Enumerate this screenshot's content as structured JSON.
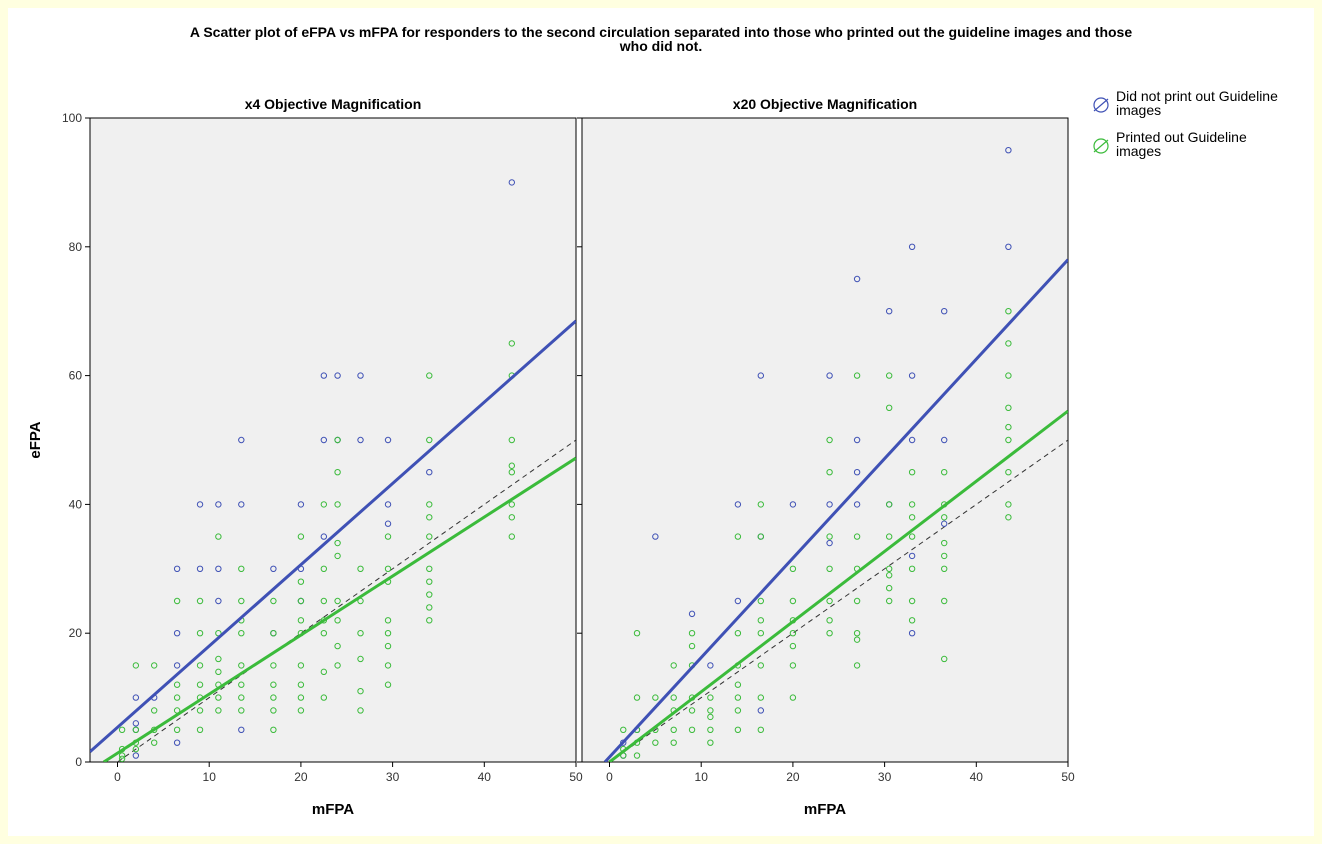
{
  "title_lines": [
    "A Scatter plot of eFPA vs mFPA for responders to the second circulation separated into those who printed out the guideline images and those",
    "who did not."
  ],
  "colors": {
    "did_not_print": "#3f51b5",
    "printed": "#3bbb3b",
    "panel_bg": "#f0f0f0",
    "reference_line": "#333333"
  },
  "chart_data": [
    {
      "type": "scatter",
      "title": "x4 Objective Magnification",
      "xlabel": "mFPA",
      "ylabel": "eFPA",
      "xlim": [
        -3,
        50
      ],
      "ylim": [
        0,
        100
      ],
      "xticks": [
        0,
        10,
        20,
        30,
        40,
        50
      ],
      "xtick_labels": [
        "0",
        "10",
        "20",
        "30",
        "40",
        "50"
      ],
      "yticks": [
        0,
        20,
        40,
        60,
        80,
        100
      ],
      "ytick_labels": [
        "0",
        "20",
        "40",
        "60",
        "80",
        "100"
      ],
      "grid": false,
      "legend": "right",
      "series": [
        {
          "name": "Did not print out Guideline images",
          "points": [
            [
              2,
              10
            ],
            [
              2,
              6
            ],
            [
              2,
              5
            ],
            [
              2,
              1
            ],
            [
              4,
              10
            ],
            [
              6.5,
              30
            ],
            [
              6.5,
              20
            ],
            [
              6.5,
              15
            ],
            [
              6.5,
              3
            ],
            [
              9,
              40
            ],
            [
              9,
              30
            ],
            [
              11,
              40
            ],
            [
              11,
              30
            ],
            [
              11,
              25
            ],
            [
              13.5,
              50
            ],
            [
              13.5,
              40
            ],
            [
              13.5,
              5
            ],
            [
              17,
              30
            ],
            [
              17,
              20
            ],
            [
              20,
              40
            ],
            [
              20,
              30
            ],
            [
              20,
              25
            ],
            [
              22.5,
              60
            ],
            [
              22.5,
              50
            ],
            [
              22.5,
              35
            ],
            [
              24,
              60
            ],
            [
              24,
              50
            ],
            [
              26.5,
              60
            ],
            [
              26.5,
              50
            ],
            [
              29.5,
              50
            ],
            [
              29.5,
              40
            ],
            [
              29.5,
              37
            ],
            [
              34,
              45
            ],
            [
              43,
              90
            ]
          ],
          "fit": [
            [
              -3,
              1.6
            ],
            [
              50,
              68.5
            ]
          ]
        },
        {
          "name": "Printed out Guideline images",
          "points": [
            [
              0.5,
              2
            ],
            [
              0.5,
              1
            ],
            [
              0.5,
              0.5
            ],
            [
              0.5,
              5
            ],
            [
              2,
              15
            ],
            [
              2,
              5
            ],
            [
              2,
              3
            ],
            [
              2,
              2
            ],
            [
              4,
              15
            ],
            [
              4,
              8
            ],
            [
              4,
              5
            ],
            [
              4,
              3
            ],
            [
              6.5,
              25
            ],
            [
              6.5,
              12
            ],
            [
              6.5,
              10
            ],
            [
              6.5,
              8
            ],
            [
              6.5,
              5
            ],
            [
              9,
              25
            ],
            [
              9,
              20
            ],
            [
              9,
              15
            ],
            [
              9,
              12
            ],
            [
              9,
              10
            ],
            [
              9,
              8
            ],
            [
              9,
              5
            ],
            [
              11,
              35
            ],
            [
              11,
              20
            ],
            [
              11,
              16
            ],
            [
              11,
              14
            ],
            [
              11,
              12
            ],
            [
              11,
              10
            ],
            [
              11,
              8
            ],
            [
              13.5,
              30
            ],
            [
              13.5,
              25
            ],
            [
              13.5,
              22
            ],
            [
              13.5,
              20
            ],
            [
              13.5,
              15
            ],
            [
              13.5,
              12
            ],
            [
              13.5,
              10
            ],
            [
              13.5,
              8
            ],
            [
              17,
              25
            ],
            [
              17,
              20
            ],
            [
              17,
              15
            ],
            [
              17,
              12
            ],
            [
              17,
              10
            ],
            [
              17,
              8
            ],
            [
              17,
              5
            ],
            [
              20,
              35
            ],
            [
              20,
              28
            ],
            [
              20,
              25
            ],
            [
              20,
              22
            ],
            [
              20,
              20
            ],
            [
              20,
              15
            ],
            [
              20,
              12
            ],
            [
              20,
              10
            ],
            [
              20,
              8
            ],
            [
              22.5,
              40
            ],
            [
              22.5,
              30
            ],
            [
              22.5,
              25
            ],
            [
              22.5,
              22
            ],
            [
              22.5,
              20
            ],
            [
              22.5,
              14
            ],
            [
              22.5,
              10
            ],
            [
              24,
              50
            ],
            [
              24,
              45
            ],
            [
              24,
              40
            ],
            [
              24,
              34
            ],
            [
              24,
              32
            ],
            [
              24,
              25
            ],
            [
              24,
              22
            ],
            [
              24,
              18
            ],
            [
              24,
              15
            ],
            [
              26.5,
              30
            ],
            [
              26.5,
              25
            ],
            [
              26.5,
              20
            ],
            [
              26.5,
              16
            ],
            [
              26.5,
              11
            ],
            [
              26.5,
              8
            ],
            [
              29.5,
              35
            ],
            [
              29.5,
              30
            ],
            [
              29.5,
              28
            ],
            [
              29.5,
              22
            ],
            [
              29.5,
              20
            ],
            [
              29.5,
              18
            ],
            [
              29.5,
              15
            ],
            [
              29.5,
              12
            ],
            [
              34,
              60
            ],
            [
              34,
              50
            ],
            [
              34,
              40
            ],
            [
              34,
              38
            ],
            [
              34,
              35
            ],
            [
              34,
              30
            ],
            [
              34,
              28
            ],
            [
              34,
              26
            ],
            [
              34,
              24
            ],
            [
              34,
              22
            ],
            [
              43,
              65
            ],
            [
              43,
              60
            ],
            [
              43,
              50
            ],
            [
              43,
              46
            ],
            [
              43,
              45
            ],
            [
              43,
              40
            ],
            [
              43,
              38
            ],
            [
              43,
              35
            ]
          ],
          "fit": [
            [
              -1.5,
              0
            ],
            [
              50,
              47.2
            ]
          ]
        }
      ],
      "reference_line": [
        [
          0,
          0
        ],
        [
          50,
          50
        ]
      ]
    },
    {
      "type": "scatter",
      "title": "x20 Objective Magnification",
      "xlabel": "mFPA",
      "ylabel": "",
      "xlim": [
        -3,
        50
      ],
      "ylim": [
        0,
        100
      ],
      "xticks": [
        0,
        10,
        20,
        30,
        40,
        50
      ],
      "xtick_labels": [
        "0",
        "10",
        "20",
        "30",
        "40",
        "50"
      ],
      "yticks": [
        0,
        20,
        40,
        60,
        80,
        100
      ],
      "ytick_labels": [],
      "grid": false,
      "legend": "right",
      "series": [
        {
          "name": "Did not print out Guideline images",
          "points": [
            [
              1.5,
              3
            ],
            [
              1.5,
              1
            ],
            [
              3,
              5
            ],
            [
              5,
              35
            ],
            [
              9,
              23
            ],
            [
              11,
              15
            ],
            [
              14,
              40
            ],
            [
              14,
              25
            ],
            [
              16.5,
              60
            ],
            [
              16.5,
              8
            ],
            [
              16.5,
              35
            ],
            [
              20,
              40
            ],
            [
              24,
              60
            ],
            [
              24,
              40
            ],
            [
              24,
              34
            ],
            [
              27,
              75
            ],
            [
              27,
              50
            ],
            [
              27,
              45
            ],
            [
              27,
              40
            ],
            [
              30.5,
              70
            ],
            [
              30.5,
              40
            ],
            [
              33,
              80
            ],
            [
              33,
              60
            ],
            [
              33,
              50
            ],
            [
              33,
              32
            ],
            [
              33,
              20
            ],
            [
              36.5,
              70
            ],
            [
              36.5,
              50
            ],
            [
              36.5,
              37
            ],
            [
              43.5,
              95
            ],
            [
              43.5,
              80
            ]
          ],
          "fit": [
            [
              -0.5,
              0
            ],
            [
              50,
              78
            ]
          ]
        },
        {
          "name": "Printed out Guideline images",
          "points": [
            [
              1.5,
              5
            ],
            [
              1.5,
              2
            ],
            [
              1.5,
              1
            ],
            [
              3,
              20
            ],
            [
              3,
              10
            ],
            [
              3,
              5
            ],
            [
              3,
              3
            ],
            [
              3,
              1
            ],
            [
              5,
              10
            ],
            [
              5,
              5
            ],
            [
              5,
              3
            ],
            [
              7,
              15
            ],
            [
              7,
              10
            ],
            [
              7,
              8
            ],
            [
              7,
              5
            ],
            [
              7,
              3
            ],
            [
              9,
              20
            ],
            [
              9,
              18
            ],
            [
              9,
              15
            ],
            [
              9,
              10
            ],
            [
              9,
              8
            ],
            [
              9,
              5
            ],
            [
              11,
              10
            ],
            [
              11,
              8
            ],
            [
              11,
              7
            ],
            [
              11,
              5
            ],
            [
              11,
              3
            ],
            [
              14,
              35
            ],
            [
              14,
              20
            ],
            [
              14,
              15
            ],
            [
              14,
              12
            ],
            [
              14,
              10
            ],
            [
              14,
              8
            ],
            [
              14,
              5
            ],
            [
              16.5,
              40
            ],
            [
              16.5,
              35
            ],
            [
              16.5,
              25
            ],
            [
              16.5,
              22
            ],
            [
              16.5,
              20
            ],
            [
              16.5,
              15
            ],
            [
              16.5,
              10
            ],
            [
              16.5,
              5
            ],
            [
              20,
              30
            ],
            [
              20,
              25
            ],
            [
              20,
              22
            ],
            [
              20,
              20
            ],
            [
              20,
              18
            ],
            [
              20,
              15
            ],
            [
              20,
              10
            ],
            [
              24,
              50
            ],
            [
              24,
              45
            ],
            [
              24,
              35
            ],
            [
              24,
              30
            ],
            [
              24,
              25
            ],
            [
              24,
              22
            ],
            [
              24,
              20
            ],
            [
              27,
              60
            ],
            [
              27,
              35
            ],
            [
              27,
              30
            ],
            [
              27,
              25
            ],
            [
              27,
              20
            ],
            [
              27,
              19
            ],
            [
              27,
              15
            ],
            [
              30.5,
              60
            ],
            [
              30.5,
              55
            ],
            [
              30.5,
              40
            ],
            [
              30.5,
              35
            ],
            [
              30.5,
              30
            ],
            [
              30.5,
              29
            ],
            [
              30.5,
              27
            ],
            [
              30.5,
              25
            ],
            [
              33,
              45
            ],
            [
              33,
              40
            ],
            [
              33,
              38
            ],
            [
              33,
              35
            ],
            [
              33,
              30
            ],
            [
              33,
              25
            ],
            [
              33,
              22
            ],
            [
              36.5,
              45
            ],
            [
              36.5,
              40
            ],
            [
              36.5,
              38
            ],
            [
              36.5,
              34
            ],
            [
              36.5,
              32
            ],
            [
              36.5,
              30
            ],
            [
              36.5,
              25
            ],
            [
              36.5,
              16
            ],
            [
              43.5,
              70
            ],
            [
              43.5,
              65
            ],
            [
              43.5,
              60
            ],
            [
              43.5,
              55
            ],
            [
              43.5,
              52
            ],
            [
              43.5,
              50
            ],
            [
              43.5,
              45
            ],
            [
              43.5,
              40
            ],
            [
              43.5,
              38
            ]
          ],
          "fit": [
            [
              0,
              0
            ],
            [
              50,
              54.5
            ]
          ]
        }
      ],
      "reference_line": [
        [
          0,
          0
        ],
        [
          50,
          50
        ]
      ]
    }
  ]
}
